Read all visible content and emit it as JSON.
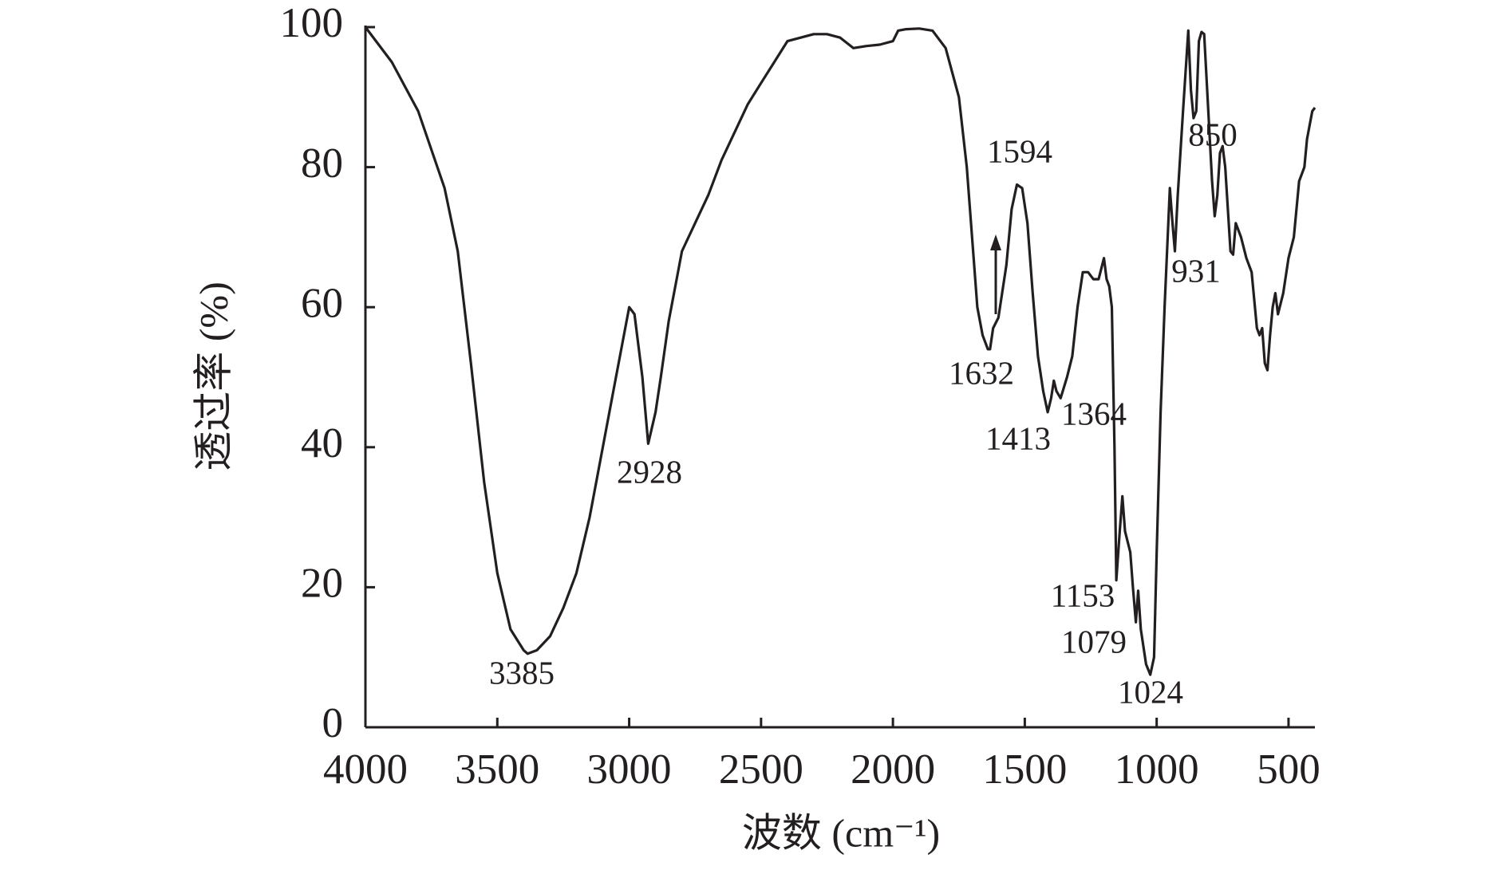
{
  "chart_data": {
    "type": "line",
    "x_label": "波数 (cm⁻¹)",
    "y_label": "透过率 (%)",
    "xlim": [
      4000,
      400
    ],
    "ylim": [
      0,
      100
    ],
    "xticks": [
      4000,
      3500,
      3000,
      2500,
      2000,
      1500,
      1000,
      500
    ],
    "yticks": [
      0,
      20,
      40,
      60,
      80,
      100
    ],
    "grid": false,
    "series": [
      {
        "color": "#231f20",
        "x": [
          4000,
          3900,
          3800,
          3700,
          3650,
          3600,
          3550,
          3500,
          3450,
          3400,
          3385,
          3350,
          3300,
          3250,
          3200,
          3150,
          3100,
          3050,
          3000,
          2980,
          2950,
          2928,
          2900,
          2880,
          2850,
          2800,
          2750,
          2700,
          2650,
          2600,
          2550,
          2500,
          2450,
          2400,
          2350,
          2300,
          2250,
          2200,
          2150,
          2100,
          2050,
          2000,
          1980,
          1950,
          1900,
          1850,
          1800,
          1750,
          1720,
          1700,
          1680,
          1660,
          1640,
          1632,
          1620,
          1600,
          1594,
          1570,
          1550,
          1530,
          1510,
          1490,
          1470,
          1450,
          1430,
          1413,
          1400,
          1390,
          1380,
          1364,
          1340,
          1320,
          1300,
          1280,
          1260,
          1240,
          1220,
          1200,
          1190,
          1180,
          1170,
          1160,
          1153,
          1140,
          1130,
          1120,
          1100,
          1090,
          1079,
          1070,
          1060,
          1040,
          1024,
          1010,
          1000,
          985,
          970,
          950,
          940,
          931,
          920,
          900,
          880,
          870,
          860,
          850,
          840,
          830,
          820,
          810,
          800,
          790,
          780,
          770,
          760,
          750,
          740,
          720,
          710,
          700,
          680,
          660,
          640,
          620,
          610,
          600,
          590,
          580,
          570,
          560,
          550,
          540,
          520,
          500,
          480,
          460,
          450,
          440,
          430,
          420,
          410,
          400
        ],
        "values": [
          100,
          95,
          88,
          77,
          68,
          52,
          35,
          22,
          14,
          11,
          10.5,
          11,
          13,
          17,
          22,
          30,
          40,
          50,
          60,
          59,
          50,
          40.5,
          45,
          50,
          58,
          68,
          72,
          76,
          81,
          85,
          89,
          92,
          95,
          98,
          98.5,
          99,
          99,
          98.5,
          97,
          97.3,
          97.5,
          98,
          99.5,
          99.7,
          99.8,
          99.5,
          97,
          90,
          80,
          70,
          60,
          56,
          54,
          54,
          57,
          58.5,
          60,
          66,
          74,
          77.5,
          77,
          72,
          62,
          53,
          48,
          45,
          47,
          49.5,
          48,
          47,
          50,
          53,
          60,
          65,
          65,
          64,
          64,
          67,
          64,
          63,
          60,
          40,
          21,
          28,
          33,
          28,
          25,
          20,
          15,
          19.5,
          14,
          9,
          7.5,
          10,
          25,
          45,
          60,
          77,
          72,
          68,
          76,
          88,
          99.5,
          91,
          87,
          88,
          98,
          99.3,
          99,
          92,
          85,
          78,
          73,
          76,
          82,
          83,
          80,
          68,
          67.5,
          72,
          70,
          67,
          65,
          57,
          56,
          57,
          52,
          51,
          56,
          60,
          62,
          59,
          62,
          67,
          70,
          78,
          79,
          80,
          84,
          86,
          88,
          88.5
        ]
      }
    ],
    "annotations": [
      "3385",
      "2928",
      "1594",
      "1632",
      "1413",
      "1364",
      "1153",
      "1079",
      "1024",
      "850",
      "931"
    ]
  }
}
